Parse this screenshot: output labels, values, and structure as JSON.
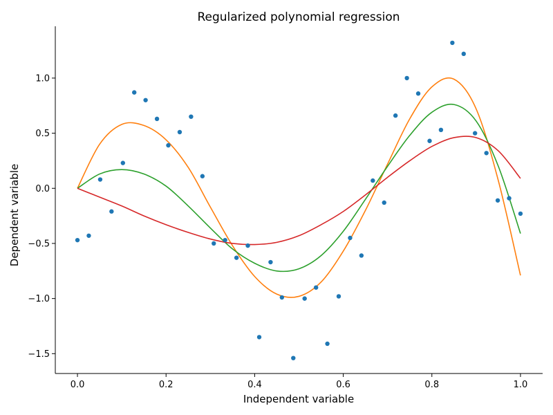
{
  "chart_data": {
    "type": "scatter",
    "title": "Regularized polynomial regression",
    "xlabel": "Independent variable",
    "ylabel": "Dependent variable",
    "xlim": [
      -0.05,
      1.05
    ],
    "ylim": [
      -1.68,
      1.47
    ],
    "grid": false,
    "x_ticks": [
      0.0,
      0.2,
      0.4,
      0.6,
      0.8,
      1.0
    ],
    "x_tick_labels": [
      "0.0",
      "0.2",
      "0.4",
      "0.6",
      "0.8",
      "1.0"
    ],
    "y_ticks": [
      -1.5,
      -1.0,
      -0.5,
      0.0,
      0.5,
      1.0
    ],
    "y_tick_labels": [
      "−1.5",
      "−1.0",
      "−0.5",
      "0.0",
      "0.5",
      "1.0"
    ],
    "points": {
      "color": "#1f77b4",
      "x": [
        0.0,
        0.0256,
        0.0513,
        0.0769,
        0.1026,
        0.1282,
        0.1538,
        0.1795,
        0.2051,
        0.2308,
        0.2564,
        0.2821,
        0.3077,
        0.3333,
        0.359,
        0.3846,
        0.4103,
        0.4359,
        0.4615,
        0.4872,
        0.5128,
        0.5385,
        0.5641,
        0.5897,
        0.6154,
        0.641,
        0.6667,
        0.6923,
        0.7179,
        0.7436,
        0.7692,
        0.7949,
        0.8205,
        0.8462,
        0.8718,
        0.8974,
        0.9231,
        0.9487,
        0.9744,
        1.0
      ],
      "y": [
        -0.47,
        -0.43,
        0.08,
        -0.21,
        0.23,
        0.87,
        0.8,
        0.63,
        0.39,
        0.51,
        0.65,
        0.11,
        -0.5,
        -0.47,
        -0.63,
        -0.52,
        -1.35,
        -0.67,
        -0.99,
        -1.54,
        -1.0,
        -0.9,
        -1.41,
        -0.98,
        -0.45,
        -0.61,
        0.07,
        -0.13,
        0.66,
        1.0,
        0.86,
        0.43,
        0.53,
        1.32,
        1.22,
        0.5,
        0.32,
        -0.11,
        -0.09,
        -0.23
      ]
    },
    "series": [
      {
        "color": "#ff7f0e",
        "x": [
          0.0,
          0.05,
          0.1,
          0.15,
          0.2,
          0.25,
          0.3,
          0.35,
          0.4,
          0.45,
          0.5,
          0.55,
          0.6,
          0.65,
          0.7,
          0.75,
          0.8,
          0.85,
          0.9,
          0.95,
          1.0
        ],
        "y": [
          0.0,
          0.4,
          0.58,
          0.57,
          0.44,
          0.19,
          -0.17,
          -0.52,
          -0.8,
          -0.96,
          -0.98,
          -0.85,
          -0.57,
          -0.2,
          0.22,
          0.63,
          0.92,
          0.99,
          0.72,
          0.07,
          -0.79
        ]
      },
      {
        "color": "#2ca02c",
        "x": [
          0.0,
          0.05,
          0.1,
          0.15,
          0.2,
          0.25,
          0.3,
          0.35,
          0.4,
          0.45,
          0.5,
          0.55,
          0.6,
          0.65,
          0.7,
          0.75,
          0.8,
          0.85,
          0.9,
          0.95,
          1.0
        ],
        "y": [
          0.0,
          0.13,
          0.17,
          0.13,
          0.02,
          -0.16,
          -0.36,
          -0.55,
          -0.68,
          -0.75,
          -0.73,
          -0.61,
          -0.39,
          -0.1,
          0.2,
          0.48,
          0.69,
          0.76,
          0.61,
          0.2,
          -0.41
        ]
      },
      {
        "color": "#d62728",
        "x": [
          0.0,
          0.05,
          0.1,
          0.15,
          0.2,
          0.25,
          0.3,
          0.35,
          0.4,
          0.45,
          0.5,
          0.55,
          0.6,
          0.65,
          0.7,
          0.75,
          0.8,
          0.85,
          0.9,
          0.95,
          1.0
        ],
        "y": [
          0.0,
          -0.08,
          -0.16,
          -0.25,
          -0.33,
          -0.4,
          -0.46,
          -0.5,
          -0.51,
          -0.49,
          -0.43,
          -0.33,
          -0.21,
          -0.06,
          0.1,
          0.25,
          0.38,
          0.46,
          0.46,
          0.34,
          0.09
        ]
      }
    ]
  }
}
